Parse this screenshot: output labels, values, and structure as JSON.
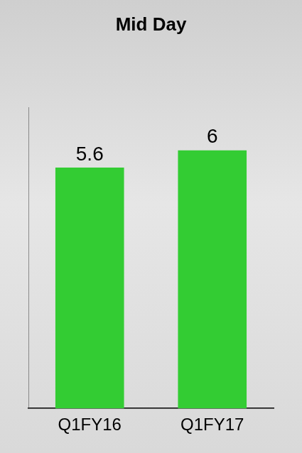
{
  "chart_data": {
    "type": "bar",
    "title": "Mid Day",
    "categories": [
      "Q1FY16",
      "Q1FY17"
    ],
    "values": [
      5.6,
      6.0
    ],
    "color": "#33cc33",
    "ylim": [
      0,
      7
    ],
    "tick_labels": "x",
    "grid": false,
    "data_labels": true
  }
}
